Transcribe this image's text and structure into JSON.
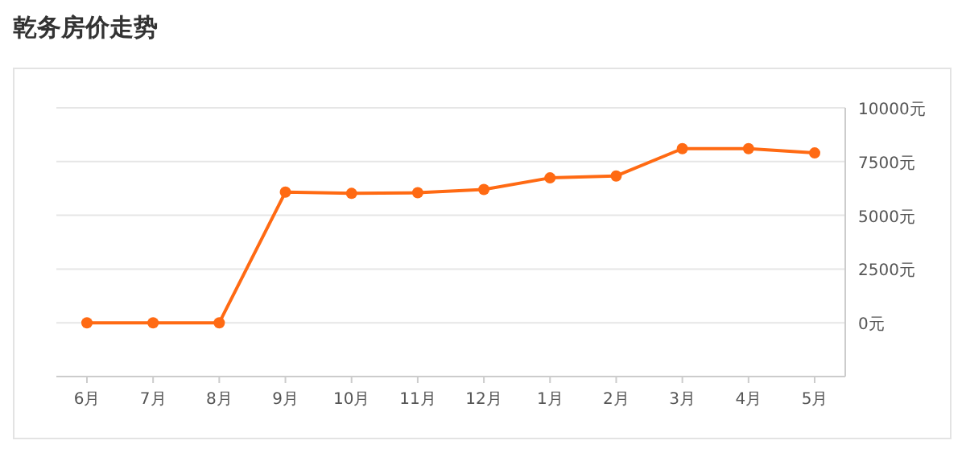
{
  "chart_data": {
    "type": "line",
    "title": "乾务房价走势",
    "categories": [
      "6月",
      "7月",
      "8月",
      "9月",
      "10月",
      "11月",
      "12月",
      "1月",
      "2月",
      "3月",
      "4月",
      "5月"
    ],
    "series": [
      {
        "color": "#ff6a13",
        "values": [
          0,
          0,
          0,
          6080,
          6020,
          6050,
          6200,
          6740,
          6830,
          8100,
          8100,
          7900
        ]
      }
    ],
    "ylim": [
      -2500,
      10000
    ],
    "yticks": [
      {
        "value": 0,
        "label": "0元"
      },
      {
        "value": 2500,
        "label": "2500元"
      },
      {
        "value": 5000,
        "label": "5000元"
      },
      {
        "value": 7500,
        "label": "7500元"
      },
      {
        "value": 10000,
        "label": "10000元"
      }
    ],
    "grid": "y",
    "marker": "circle",
    "line_style": "solid"
  }
}
